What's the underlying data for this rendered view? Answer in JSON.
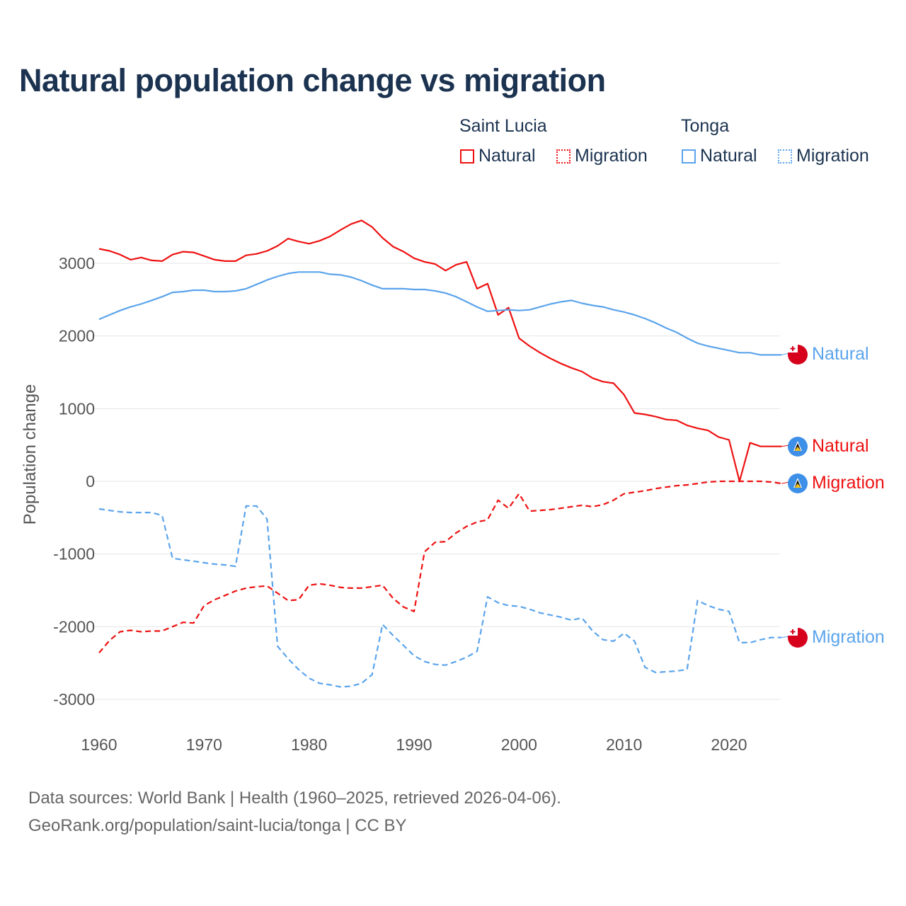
{
  "title": "Natural population change vs migration",
  "legend": {
    "groups": [
      {
        "name": "Saint Lucia",
        "color": "#ee1111",
        "items": [
          "Natural",
          "Migration"
        ]
      },
      {
        "name": "Tonga",
        "color": "#5ba4ec",
        "items": [
          "Natural",
          "Migration"
        ]
      }
    ]
  },
  "source": {
    "line1": "Data sources: World Bank | Health (1960–2025, retrieved 2026-04-06).",
    "line2": "GeoRank.org/population/saint-lucia/tonga | CC BY"
  },
  "chart_data": {
    "type": "line",
    "title": "Natural population change vs migration",
    "xlabel": "",
    "ylabel": "Population change",
    "xlim": [
      1960,
      2025
    ],
    "ylim": [
      -3000,
      3600
    ],
    "xticks": [
      1960,
      1970,
      1980,
      1990,
      2000,
      2010,
      2020
    ],
    "yticks": [
      3000,
      2000,
      1000,
      0,
      -1000,
      -2000,
      -3000
    ],
    "grid": true,
    "x_start": 1960,
    "series": [
      {
        "name": "Saint Lucia Natural",
        "label": "Natural",
        "country": "Saint Lucia",
        "color": "#ee1111",
        "dash": false,
        "flag": "saint-lucia",
        "values": [
          3200,
          3170,
          3120,
          3050,
          3080,
          3040,
          3030,
          3120,
          3160,
          3150,
          3100,
          3050,
          3030,
          3030,
          3110,
          3130,
          3170,
          3240,
          3340,
          3300,
          3270,
          3310,
          3370,
          3460,
          3540,
          3590,
          3500,
          3350,
          3230,
          3160,
          3070,
          3020,
          2990,
          2900,
          2980,
          3020,
          2650,
          2720,
          2290,
          2390,
          1970,
          1860,
          1770,
          1690,
          1620,
          1560,
          1510,
          1420,
          1370,
          1350,
          1190,
          940,
          920,
          890,
          850,
          840,
          770,
          730,
          700,
          610,
          570,
          0,
          530,
          480,
          480,
          480
        ]
      },
      {
        "name": "Saint Lucia Migration",
        "label": "Migration",
        "country": "Saint Lucia",
        "color": "#ee1111",
        "dash": true,
        "flag": "saint-lucia",
        "values": [
          -2360,
          -2190,
          -2070,
          -2050,
          -2070,
          -2060,
          -2060,
          -2000,
          -1940,
          -1950,
          -1710,
          -1630,
          -1570,
          -1510,
          -1470,
          -1450,
          -1440,
          -1540,
          -1640,
          -1630,
          -1430,
          -1410,
          -1430,
          -1460,
          -1470,
          -1470,
          -1450,
          -1430,
          -1610,
          -1730,
          -1790,
          -970,
          -840,
          -830,
          -710,
          -620,
          -560,
          -530,
          -260,
          -370,
          -170,
          -410,
          -400,
          -390,
          -370,
          -350,
          -330,
          -350,
          -320,
          -260,
          -170,
          -150,
          -130,
          -100,
          -80,
          -60,
          -50,
          -30,
          -10,
          0,
          0,
          0,
          0,
          0,
          -10,
          -30
        ]
      },
      {
        "name": "Tonga Natural",
        "label": "Natural",
        "country": "Tonga",
        "color": "#5ba4ec",
        "dash": false,
        "flag": "tonga",
        "values": [
          2230,
          2290,
          2350,
          2400,
          2440,
          2490,
          2540,
          2600,
          2610,
          2630,
          2630,
          2610,
          2610,
          2620,
          2650,
          2710,
          2770,
          2820,
          2860,
          2880,
          2880,
          2880,
          2850,
          2840,
          2810,
          2760,
          2700,
          2650,
          2650,
          2650,
          2640,
          2640,
          2620,
          2590,
          2540,
          2470,
          2400,
          2340,
          2350,
          2360,
          2350,
          2360,
          2400,
          2440,
          2470,
          2490,
          2450,
          2420,
          2400,
          2360,
          2330,
          2290,
          2240,
          2180,
          2110,
          2050,
          1970,
          1900,
          1860,
          1830,
          1800,
          1770,
          1770,
          1740,
          1740,
          1740
        ]
      },
      {
        "name": "Tonga Migration",
        "label": "Migration",
        "country": "Tonga",
        "color": "#5ba4ec",
        "dash": true,
        "flag": "tonga",
        "values": [
          -380,
          -400,
          -420,
          -430,
          -430,
          -430,
          -470,
          -1060,
          -1080,
          -1100,
          -1120,
          -1140,
          -1150,
          -1170,
          -340,
          -340,
          -520,
          -2270,
          -2440,
          -2590,
          -2710,
          -2780,
          -2800,
          -2830,
          -2820,
          -2780,
          -2660,
          -1970,
          -2120,
          -2260,
          -2400,
          -2480,
          -2520,
          -2530,
          -2480,
          -2420,
          -2340,
          -1590,
          -1670,
          -1710,
          -1720,
          -1760,
          -1810,
          -1840,
          -1870,
          -1910,
          -1880,
          -2060,
          -2180,
          -2200,
          -2090,
          -2200,
          -2560,
          -2630,
          -2620,
          -2610,
          -2590,
          -1640,
          -1710,
          -1760,
          -1790,
          -2220,
          -2220,
          -2180,
          -2150,
          -2150
        ]
      }
    ]
  }
}
